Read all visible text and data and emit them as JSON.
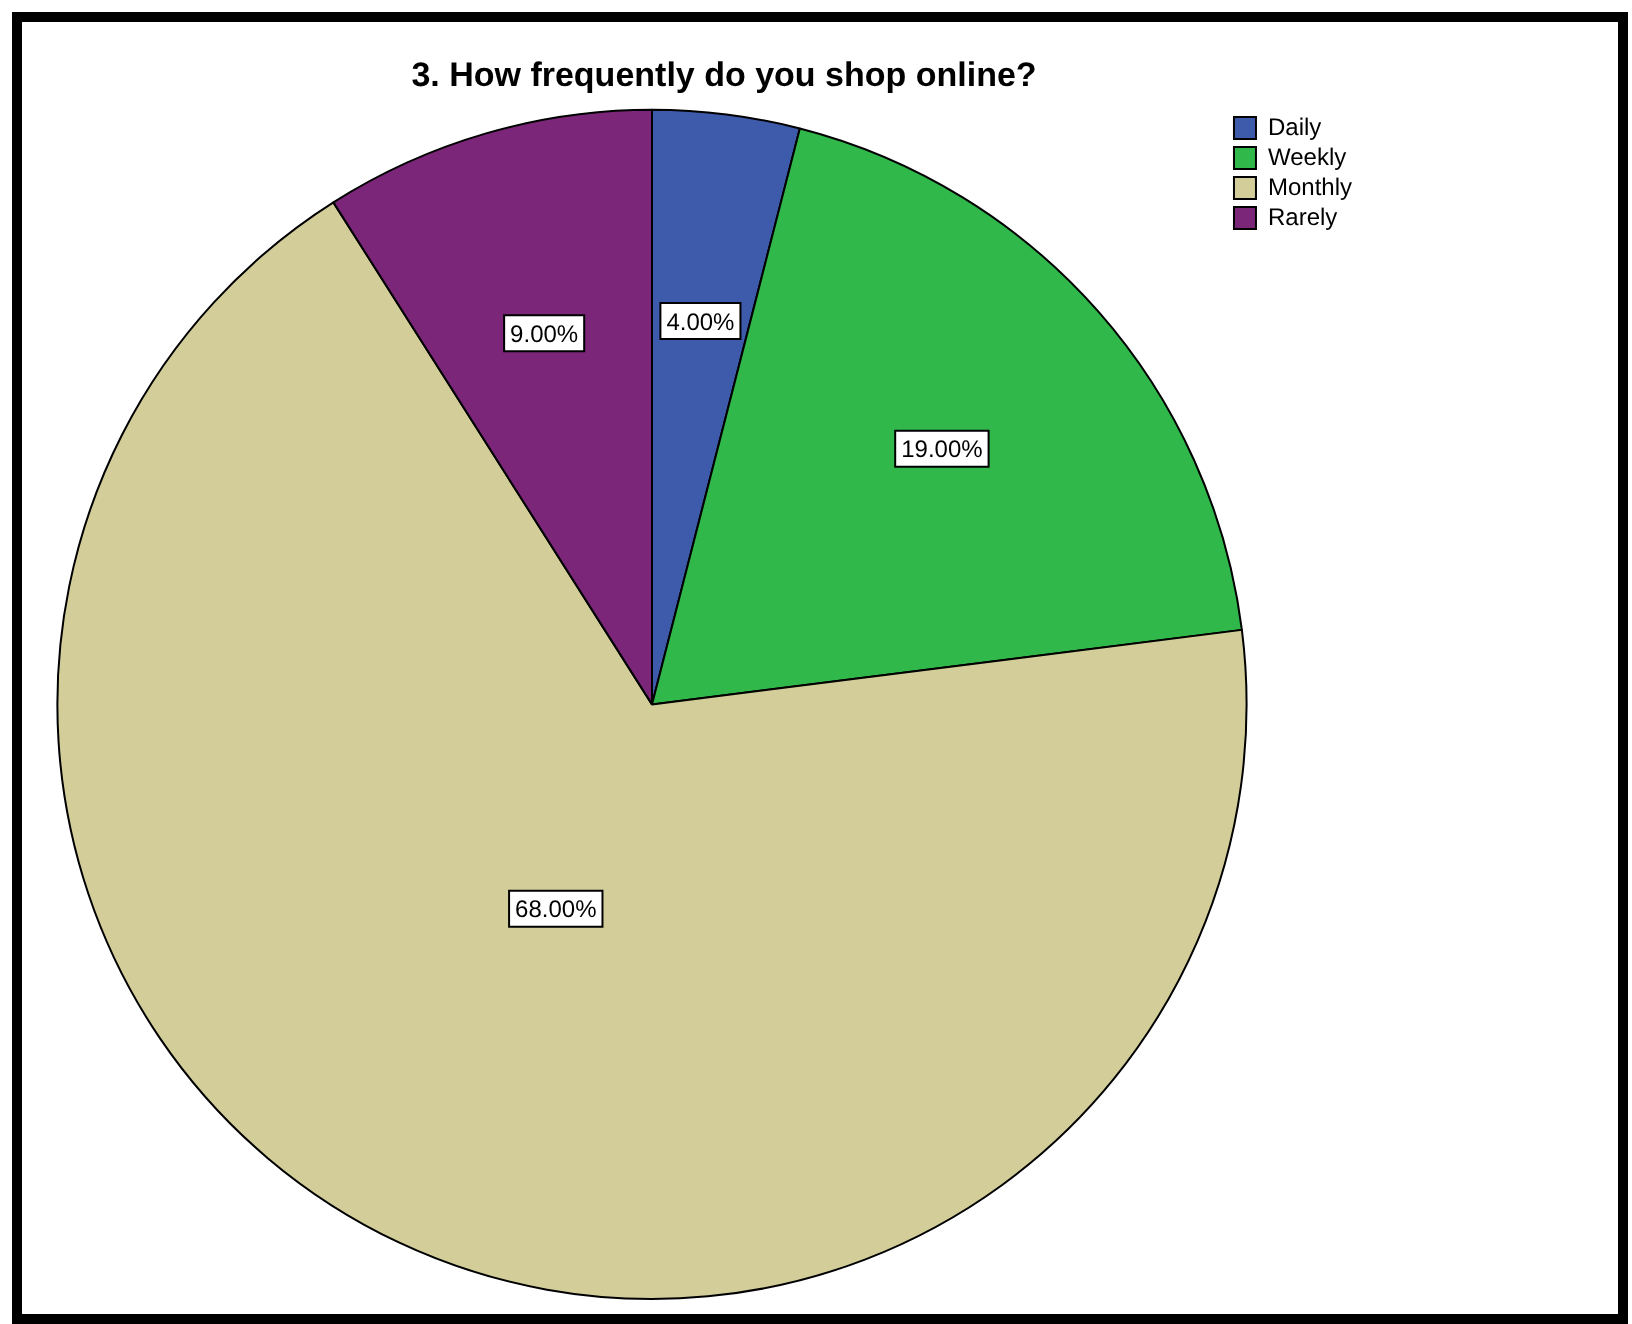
{
  "chart_data": {
    "type": "pie",
    "title": "3. How frequently do you shop online?",
    "categories": [
      "Daily",
      "Weekly",
      "Monthly",
      "Rarely"
    ],
    "values": [
      4,
      19,
      68,
      9
    ],
    "colors": [
      "#3e5aab",
      "#30b84a",
      "#d3ce99",
      "#7b2679"
    ],
    "value_labels": [
      "4.00%",
      "19.00%",
      "68.00%",
      "9.00%"
    ],
    "legend": "top right"
  }
}
